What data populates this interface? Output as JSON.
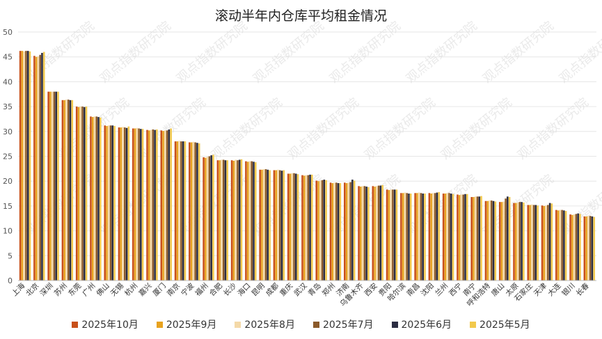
{
  "chart_data": {
    "type": "bar",
    "title": "滚动半年内仓库平均租金情况",
    "ylim": [
      0,
      50
    ],
    "yticks": [
      0,
      5,
      10,
      15,
      20,
      25,
      30,
      35,
      40,
      45,
      50
    ],
    "grid": true,
    "legend_position": "bottom",
    "categories": [
      "上海",
      "北京",
      "深圳",
      "苏州",
      "东莞",
      "广州",
      "佛山",
      "无锡",
      "杭州",
      "嘉兴",
      "厦门",
      "南京",
      "宁波",
      "福州",
      "合肥",
      "长沙",
      "海口",
      "昆明",
      "成都",
      "重庆",
      "武汉",
      "青岛",
      "郑州",
      "济南",
      "乌鲁木齐",
      "西安",
      "贵阳",
      "哈尔滨",
      "南昌",
      "沈阳",
      "兰州",
      "西宁",
      "南宁",
      "呼和浩特",
      "唐山",
      "太原",
      "石家庄",
      "天津",
      "大连",
      "银川",
      "长春"
    ],
    "series": [
      {
        "name": "2025年10月",
        "color": "#C8501A",
        "values": [
          46.2,
          45.2,
          38.0,
          36.3,
          35.0,
          33.0,
          31.2,
          30.8,
          30.6,
          30.3,
          30.2,
          28.0,
          27.8,
          24.8,
          24.2,
          24.2,
          24.0,
          22.3,
          22.2,
          21.5,
          21.2,
          20.1,
          19.7,
          19.7,
          19.0,
          19.0,
          18.3,
          17.6,
          17.6,
          17.6,
          17.5,
          17.3,
          16.8,
          16.0,
          15.8,
          15.6,
          15.2,
          15.1,
          14.2,
          13.3,
          12.9
        ]
      },
      {
        "name": "2025年9月",
        "color": "#E8A21E",
        "values": [
          46.2,
          45.0,
          38.0,
          36.3,
          34.9,
          32.9,
          31.1,
          30.8,
          30.6,
          30.2,
          30.1,
          28.0,
          27.8,
          24.7,
          24.2,
          24.1,
          23.9,
          22.3,
          22.2,
          21.5,
          21.1,
          20.0,
          19.6,
          19.6,
          18.9,
          18.9,
          18.2,
          17.6,
          17.6,
          17.5,
          17.5,
          17.2,
          16.8,
          16.0,
          15.8,
          15.6,
          15.2,
          15.0,
          14.1,
          13.2,
          12.9
        ]
      },
      {
        "name": "2025年8月",
        "color": "#F4D9A8",
        "values": [
          46.1,
          45.1,
          38.0,
          36.4,
          35.0,
          33.0,
          31.2,
          30.9,
          30.7,
          30.3,
          30.2,
          28.1,
          27.9,
          24.9,
          24.3,
          24.3,
          24.0,
          22.4,
          22.3,
          21.6,
          21.2,
          20.1,
          19.7,
          19.7,
          19.0,
          19.0,
          18.3,
          17.7,
          17.7,
          17.6,
          17.6,
          17.3,
          16.9,
          16.1,
          15.9,
          15.7,
          15.3,
          15.1,
          14.2,
          13.3,
          13.0
        ]
      },
      {
        "name": "2025年7月",
        "color": "#8B5A2B",
        "values": [
          46.2,
          45.4,
          38.0,
          36.4,
          35.0,
          33.0,
          31.2,
          30.8,
          30.6,
          30.4,
          30.2,
          28.0,
          27.8,
          25.0,
          24.3,
          24.2,
          24.0,
          22.4,
          22.2,
          21.6,
          21.2,
          20.2,
          19.7,
          19.8,
          19.0,
          19.1,
          18.3,
          17.6,
          17.6,
          17.6,
          17.6,
          17.3,
          16.9,
          16.1,
          16.5,
          15.8,
          15.2,
          15.2,
          14.2,
          13.4,
          13.0
        ]
      },
      {
        "name": "2025年6月",
        "color": "#2B2D42",
        "values": [
          46.2,
          45.8,
          38.0,
          36.3,
          34.9,
          32.9,
          31.2,
          30.7,
          30.5,
          30.3,
          30.4,
          28.0,
          27.7,
          25.2,
          24.2,
          24.3,
          23.9,
          22.3,
          22.1,
          21.5,
          21.3,
          20.3,
          19.6,
          20.3,
          18.9,
          19.1,
          18.3,
          17.5,
          17.5,
          17.7,
          17.5,
          17.4,
          16.9,
          16.0,
          16.9,
          15.8,
          15.2,
          15.6,
          14.1,
          13.5,
          12.9
        ]
      },
      {
        "name": "2025年5月",
        "color": "#F2C94C",
        "values": [
          46.1,
          46.0,
          38.0,
          36.3,
          35.0,
          32.8,
          31.1,
          31.0,
          30.5,
          30.4,
          30.6,
          28.0,
          27.6,
          25.3,
          24.2,
          24.4,
          23.8,
          22.2,
          22.2,
          21.4,
          21.3,
          20.2,
          19.6,
          20.1,
          18.8,
          19.2,
          18.3,
          17.5,
          17.5,
          17.8,
          17.4,
          17.4,
          17.0,
          15.9,
          16.8,
          15.7,
          15.1,
          15.5,
          14.0,
          13.4,
          12.8
        ]
      }
    ],
    "watermark": "观点指数研究院"
  }
}
